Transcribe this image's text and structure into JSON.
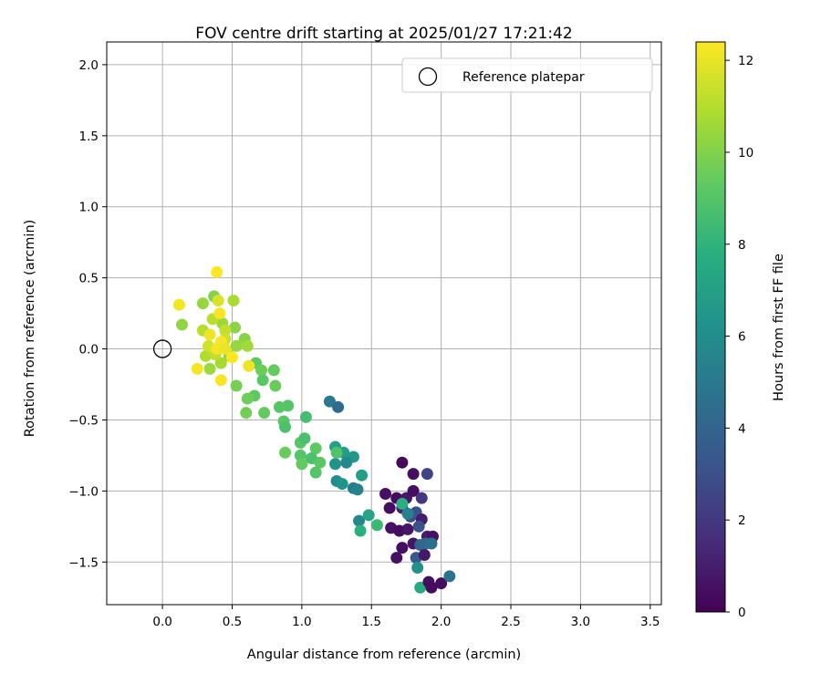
{
  "chart_data": {
    "type": "scatter",
    "title": "FOV centre drift starting at 2025/01/27 17:21:42",
    "xlabel": "Angular distance from reference (arcmin)",
    "ylabel": "Rotation from reference (arcmin)",
    "xlim": [
      -0.4,
      3.58
    ],
    "ylim": [
      -1.8,
      2.16
    ],
    "xticks": [
      0.0,
      0.5,
      1.0,
      1.5,
      2.0,
      2.5,
      3.0,
      3.5
    ],
    "xtick_labels": [
      "0.0",
      "0.5",
      "1.0",
      "1.5",
      "2.0",
      "2.5",
      "3.0",
      "3.5"
    ],
    "yticks": [
      -1.5,
      -1.0,
      -0.5,
      0.0,
      0.5,
      1.0,
      1.5,
      2.0
    ],
    "ytick_labels": [
      "−1.5",
      "−1.0",
      "−0.5",
      "0.0",
      "0.5",
      "1.0",
      "1.5",
      "2.0"
    ],
    "grid": true,
    "legend": {
      "position": "top-right",
      "label": "Reference platepar",
      "marker": "open-circle"
    },
    "reference_point": {
      "x": 0.0,
      "y": 0.0
    },
    "colorbar": {
      "label": "Hours from first FF file",
      "colormap": "viridis",
      "range": [
        0,
        12.4
      ],
      "ticks": [
        0,
        2,
        4,
        6,
        8,
        10,
        12
      ],
      "tick_labels": [
        "0",
        "2",
        "4",
        "6",
        "8",
        "10",
        "12"
      ]
    },
    "series": [
      {
        "points": [
          {
            "x": 1.72,
            "y": -0.8,
            "h": 0.3
          },
          {
            "x": 1.8,
            "y": -0.88,
            "h": 0.5
          },
          {
            "x": 1.9,
            "y": -0.88,
            "h": 2.5
          },
          {
            "x": 1.6,
            "y": -1.02,
            "h": 0.6
          },
          {
            "x": 1.68,
            "y": -1.05,
            "h": 0.4
          },
          {
            "x": 1.75,
            "y": -1.05,
            "h": 0.8
          },
          {
            "x": 1.8,
            "y": -1.0,
            "h": 0.5
          },
          {
            "x": 1.86,
            "y": -1.05,
            "h": 2.0
          },
          {
            "x": 1.63,
            "y": -1.12,
            "h": 0.5
          },
          {
            "x": 1.72,
            "y": -1.12,
            "h": 1.2
          },
          {
            "x": 1.78,
            "y": -1.18,
            "h": 2.8
          },
          {
            "x": 1.82,
            "y": -1.15,
            "h": 3.2
          },
          {
            "x": 1.86,
            "y": -1.2,
            "h": 1.0
          },
          {
            "x": 1.64,
            "y": -1.26,
            "h": 0.6
          },
          {
            "x": 1.7,
            "y": -1.28,
            "h": 0.4
          },
          {
            "x": 1.76,
            "y": -1.27,
            "h": 0.7
          },
          {
            "x": 1.84,
            "y": -1.25,
            "h": 3.0
          },
          {
            "x": 1.9,
            "y": -1.32,
            "h": 1.0
          },
          {
            "x": 1.94,
            "y": -1.32,
            "h": 0.6
          },
          {
            "x": 1.72,
            "y": -1.4,
            "h": 0.5
          },
          {
            "x": 1.8,
            "y": -1.37,
            "h": 0.7
          },
          {
            "x": 1.85,
            "y": -1.38,
            "h": 4.0
          },
          {
            "x": 1.89,
            "y": -1.37,
            "h": 4.2
          },
          {
            "x": 1.93,
            "y": -1.37,
            "h": 4.5
          },
          {
            "x": 1.68,
            "y": -1.47,
            "h": 0.6
          },
          {
            "x": 1.82,
            "y": -1.47,
            "h": 3.5
          },
          {
            "x": 1.88,
            "y": -1.45,
            "h": 0.8
          },
          {
            "x": 1.83,
            "y": -1.54,
            "h": 6.2
          },
          {
            "x": 1.85,
            "y": -1.68,
            "h": 7.5
          },
          {
            "x": 1.91,
            "y": -1.64,
            "h": 0.5
          },
          {
            "x": 1.93,
            "y": -1.68,
            "h": 0.4
          },
          {
            "x": 2.0,
            "y": -1.65,
            "h": 0.4
          },
          {
            "x": 2.06,
            "y": -1.6,
            "h": 4.7
          },
          {
            "x": 1.72,
            "y": -1.09,
            "h": 7.8
          },
          {
            "x": 1.76,
            "y": -1.16,
            "h": 5.5
          },
          {
            "x": 1.2,
            "y": -0.37,
            "h": 5.0
          },
          {
            "x": 1.26,
            "y": -0.41,
            "h": 4.3
          },
          {
            "x": 1.24,
            "y": -0.69,
            "h": 7.0
          },
          {
            "x": 1.3,
            "y": -0.73,
            "h": 6.8
          },
          {
            "x": 1.37,
            "y": -0.76,
            "h": 6.5
          },
          {
            "x": 1.24,
            "y": -0.81,
            "h": 6.3
          },
          {
            "x": 1.32,
            "y": -0.8,
            "h": 5.8
          },
          {
            "x": 1.25,
            "y": -0.93,
            "h": 6.0
          },
          {
            "x": 1.29,
            "y": -0.95,
            "h": 6.4
          },
          {
            "x": 1.37,
            "y": -0.98,
            "h": 5.2
          },
          {
            "x": 1.4,
            "y": -0.99,
            "h": 5.5
          },
          {
            "x": 1.43,
            "y": -0.89,
            "h": 6.9
          },
          {
            "x": 1.41,
            "y": -1.21,
            "h": 5.8
          },
          {
            "x": 1.48,
            "y": -1.17,
            "h": 7.2
          },
          {
            "x": 1.54,
            "y": -1.24,
            "h": 8.3
          },
          {
            "x": 1.42,
            "y": -1.28,
            "h": 7.8
          },
          {
            "x": 1.25,
            "y": -0.73,
            "h": 8.9
          },
          {
            "x": 0.9,
            "y": -0.4,
            "h": 9.0
          },
          {
            "x": 1.03,
            "y": -0.48,
            "h": 8.6
          },
          {
            "x": 0.87,
            "y": -0.51,
            "h": 9.2
          },
          {
            "x": 0.88,
            "y": -0.55,
            "h": 8.8
          },
          {
            "x": 0.99,
            "y": -0.66,
            "h": 9.1
          },
          {
            "x": 1.02,
            "y": -0.63,
            "h": 8.7
          },
          {
            "x": 1.1,
            "y": -0.7,
            "h": 9.3
          },
          {
            "x": 0.88,
            "y": -0.73,
            "h": 9.5
          },
          {
            "x": 0.99,
            "y": -0.75,
            "h": 9.0
          },
          {
            "x": 1.07,
            "y": -0.77,
            "h": 8.8
          },
          {
            "x": 1.13,
            "y": -0.8,
            "h": 9.2
          },
          {
            "x": 1.0,
            "y": -0.81,
            "h": 9.4
          },
          {
            "x": 1.1,
            "y": -0.87,
            "h": 9.0
          },
          {
            "x": 0.67,
            "y": -0.1,
            "h": 9.3
          },
          {
            "x": 0.71,
            "y": -0.15,
            "h": 9.6
          },
          {
            "x": 0.8,
            "y": -0.15,
            "h": 9.4
          },
          {
            "x": 0.72,
            "y": -0.22,
            "h": 9.2
          },
          {
            "x": 0.81,
            "y": -0.26,
            "h": 9.5
          },
          {
            "x": 0.66,
            "y": -0.33,
            "h": 9.3
          },
          {
            "x": 0.61,
            "y": -0.35,
            "h": 9.6
          },
          {
            "x": 0.53,
            "y": -0.26,
            "h": 9.8
          },
          {
            "x": 0.84,
            "y": -0.41,
            "h": 9.1
          },
          {
            "x": 0.73,
            "y": -0.45,
            "h": 9.4
          },
          {
            "x": 0.6,
            "y": -0.45,
            "h": 9.7
          },
          {
            "x": 0.14,
            "y": 0.17,
            "h": 10.3
          },
          {
            "x": 0.29,
            "y": 0.32,
            "h": 10.4
          },
          {
            "x": 0.37,
            "y": 0.37,
            "h": 10.0
          },
          {
            "x": 0.43,
            "y": 0.18,
            "h": 10.5
          },
          {
            "x": 0.51,
            "y": 0.34,
            "h": 10.8
          },
          {
            "x": 0.52,
            "y": 0.15,
            "h": 10.2
          },
          {
            "x": 0.59,
            "y": 0.07,
            "h": 10.1
          },
          {
            "x": 0.61,
            "y": 0.02,
            "h": 10.6
          },
          {
            "x": 0.53,
            "y": 0.02,
            "h": 10.4
          },
          {
            "x": 0.48,
            "y": -0.05,
            "h": 10.2
          },
          {
            "x": 0.42,
            "y": -0.1,
            "h": 10.7
          },
          {
            "x": 0.34,
            "y": -0.14,
            "h": 10.5
          },
          {
            "x": 0.31,
            "y": -0.05,
            "h": 10.9
          },
          {
            "x": 0.29,
            "y": 0.13,
            "h": 11.0
          },
          {
            "x": 0.36,
            "y": 0.21,
            "h": 11.1
          },
          {
            "x": 0.45,
            "y": 0.13,
            "h": 11.3
          },
          {
            "x": 0.38,
            "y": -0.04,
            "h": 11.2
          },
          {
            "x": 0.33,
            "y": 0.02,
            "h": 11.5
          },
          {
            "x": 0.45,
            "y": 0.07,
            "h": 11.4
          },
          {
            "x": 0.4,
            "y": 0.34,
            "h": 11.7
          },
          {
            "x": 0.12,
            "y": 0.31,
            "h": 12.2
          },
          {
            "x": 0.39,
            "y": 0.54,
            "h": 12.4
          },
          {
            "x": 0.41,
            "y": 0.25,
            "h": 12.3
          },
          {
            "x": 0.34,
            "y": 0.1,
            "h": 12.1
          },
          {
            "x": 0.42,
            "y": 0.05,
            "h": 12.3
          },
          {
            "x": 0.39,
            "y": 0.0,
            "h": 12.2
          },
          {
            "x": 0.45,
            "y": 0.0,
            "h": 12.0
          },
          {
            "x": 0.5,
            "y": -0.06,
            "h": 12.4
          },
          {
            "x": 0.25,
            "y": -0.14,
            "h": 12.2
          },
          {
            "x": 0.42,
            "y": -0.22,
            "h": 12.3
          },
          {
            "x": 0.62,
            "y": -0.12,
            "h": 12.1
          }
        ]
      }
    ]
  }
}
